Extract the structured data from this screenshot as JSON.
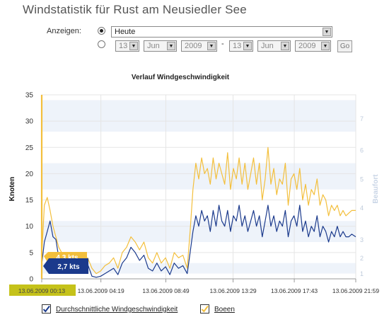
{
  "page": {
    "title": "Windstatistik für Rust am Neusiedler See"
  },
  "controls": {
    "show_label": "Anzeigen:",
    "range_option": "Heute",
    "from": {
      "day": "13",
      "month": "Jun",
      "year": "2009"
    },
    "to": {
      "day": "13",
      "month": "Jun",
      "year": "2009"
    },
    "separator": "-",
    "go_label": "Go",
    "selected_mode": "preset"
  },
  "colors": {
    "avg": "#1b3a8c",
    "gust": "#f3bf3c",
    "band": "#eef3fa",
    "highlight_box": "#c5c21a"
  },
  "tooltips": {
    "gust_value": "4,3 kts",
    "avg_value": "2,7 kts",
    "time": "13.06.2009 00:13"
  },
  "legend": {
    "avg_label": "Durchschnittliche Windgeschwindigkeit",
    "gust_label": "Boeen",
    "avg_checked": true,
    "gust_checked": true
  },
  "chart_data": {
    "type": "line",
    "title": "Verlauf Windgeschwindigkeit",
    "ylabel": "Knoten",
    "y2label": "Beaufort",
    "ylim": [
      0,
      35
    ],
    "yticks": [
      "0",
      "5",
      "10",
      "15",
      "20",
      "25",
      "30",
      "35"
    ],
    "beaufort_ticks": [
      {
        "label": "1",
        "knots": 1
      },
      {
        "label": "2",
        "knots": 4
      },
      {
        "label": "3",
        "knots": 7.5
      },
      {
        "label": "4",
        "knots": 13.5
      },
      {
        "label": "5",
        "knots": 19
      },
      {
        "label": "6",
        "knots": 24.5
      },
      {
        "label": "7",
        "knots": 30.5
      }
    ],
    "bands_knots": [
      [
        1,
        3
      ],
      [
        7,
        11
      ],
      [
        17,
        22
      ],
      [
        28,
        34
      ]
    ],
    "x_labels": [
      "13.06.2009 00:13",
      "13.06.2009 04:19",
      "13.06.2009 08:49",
      "13.06.2009 13:29",
      "13.06.2009 17:43",
      "13.06.2009 21:59"
    ],
    "x_hours": [
      0.22,
      4.32,
      8.82,
      13.48,
      17.72,
      21.98
    ],
    "x_range_hours": [
      0.22,
      21.98
    ],
    "series": [
      {
        "name": "Durchschnittliche Windgeschwindigkeit",
        "color": "#1b3a8c",
        "x": [
          0.22,
          0.4,
          0.6,
          0.8,
          1.0,
          1.2,
          1.4,
          1.6,
          1.8,
          2.0,
          2.2,
          2.5,
          2.8,
          3.1,
          3.4,
          3.7,
          4.0,
          4.3,
          4.6,
          4.9,
          5.2,
          5.5,
          5.8,
          6.1,
          6.4,
          6.7,
          7.0,
          7.3,
          7.6,
          7.9,
          8.2,
          8.5,
          8.8,
          9.1,
          9.4,
          9.7,
          10.0,
          10.3,
          10.5,
          10.7,
          10.9,
          11.1,
          11.3,
          11.5,
          11.7,
          11.9,
          12.1,
          12.3,
          12.5,
          12.7,
          12.9,
          13.1,
          13.3,
          13.5,
          13.7,
          13.9,
          14.1,
          14.3,
          14.5,
          14.7,
          14.9,
          15.1,
          15.3,
          15.5,
          15.7,
          15.9,
          16.1,
          16.3,
          16.5,
          16.7,
          16.9,
          17.1,
          17.3,
          17.5,
          17.7,
          17.9,
          18.1,
          18.3,
          18.5,
          18.7,
          18.9,
          19.1,
          19.3,
          19.5,
          19.7,
          19.9,
          20.1,
          20.3,
          20.5,
          20.7,
          20.9,
          21.1,
          21.3,
          21.5,
          21.7,
          21.98
        ],
        "values": [
          2.7,
          7,
          9,
          11,
          8,
          7.5,
          4,
          2.5,
          1.5,
          3,
          2,
          1.8,
          2.5,
          1.2,
          2.8,
          0.5,
          0.3,
          0.5,
          1,
          1.5,
          2,
          0.8,
          3,
          4,
          6,
          5,
          3.5,
          4.5,
          2,
          1.5,
          3,
          1.5,
          2.3,
          0.8,
          3,
          2,
          2.5,
          1,
          5,
          9,
          12,
          10,
          13,
          11,
          12,
          9,
          13,
          10,
          14,
          11,
          10,
          13,
          9,
          12,
          11,
          14,
          10,
          12,
          9,
          11,
          13,
          10,
          12,
          8,
          11,
          14,
          10,
          12,
          9,
          11,
          10,
          13,
          8,
          11,
          12,
          10,
          14,
          9,
          11,
          8,
          10,
          9,
          12,
          8,
          10,
          9,
          7,
          9,
          8,
          10,
          8,
          9,
          8,
          8,
          8.5,
          8
        ]
      },
      {
        "name": "Boeen",
        "color": "#f3bf3c",
        "x": [
          0.22,
          0.4,
          0.6,
          0.8,
          1.0,
          1.2,
          1.4,
          1.6,
          1.8,
          2.0,
          2.2,
          2.5,
          2.8,
          3.1,
          3.4,
          3.7,
          4.0,
          4.3,
          4.6,
          4.9,
          5.2,
          5.5,
          5.8,
          6.1,
          6.4,
          6.7,
          7.0,
          7.3,
          7.6,
          7.9,
          8.2,
          8.5,
          8.8,
          9.1,
          9.4,
          9.7,
          10.0,
          10.3,
          10.5,
          10.7,
          10.9,
          11.1,
          11.3,
          11.5,
          11.7,
          11.9,
          12.1,
          12.3,
          12.5,
          12.7,
          12.9,
          13.1,
          13.3,
          13.5,
          13.7,
          13.9,
          14.1,
          14.3,
          14.5,
          14.7,
          14.9,
          15.1,
          15.3,
          15.5,
          15.7,
          15.9,
          16.1,
          16.3,
          16.5,
          16.7,
          16.9,
          17.1,
          17.3,
          17.5,
          17.7,
          17.9,
          18.1,
          18.3,
          18.5,
          18.7,
          18.9,
          19.1,
          19.3,
          19.5,
          19.7,
          19.9,
          20.1,
          20.3,
          20.5,
          20.7,
          20.9,
          21.1,
          21.3,
          21.5,
          21.7,
          21.98
        ],
        "values": [
          4.3,
          14,
          15.5,
          13,
          10,
          8,
          6,
          5,
          3,
          5,
          4,
          3.5,
          5,
          2.5,
          4,
          2,
          1,
          1.5,
          2.5,
          3,
          4,
          2,
          5,
          6,
          8,
          7,
          5.5,
          7,
          4,
          3,
          5,
          3,
          4,
          2,
          5,
          4,
          4.5,
          2,
          9,
          17,
          22,
          19,
          23,
          20,
          21,
          18,
          23,
          19,
          22,
          20,
          18,
          24,
          17,
          21,
          19,
          23,
          18,
          22,
          17,
          20,
          23,
          18,
          22,
          15,
          19,
          25,
          18,
          21,
          16,
          19,
          18,
          22,
          14,
          19,
          20,
          17,
          21,
          15,
          18,
          14,
          17,
          16,
          19,
          14,
          16,
          15,
          12,
          14,
          13,
          14,
          12,
          13,
          12,
          12.5,
          13,
          13
        ]
      }
    ]
  }
}
